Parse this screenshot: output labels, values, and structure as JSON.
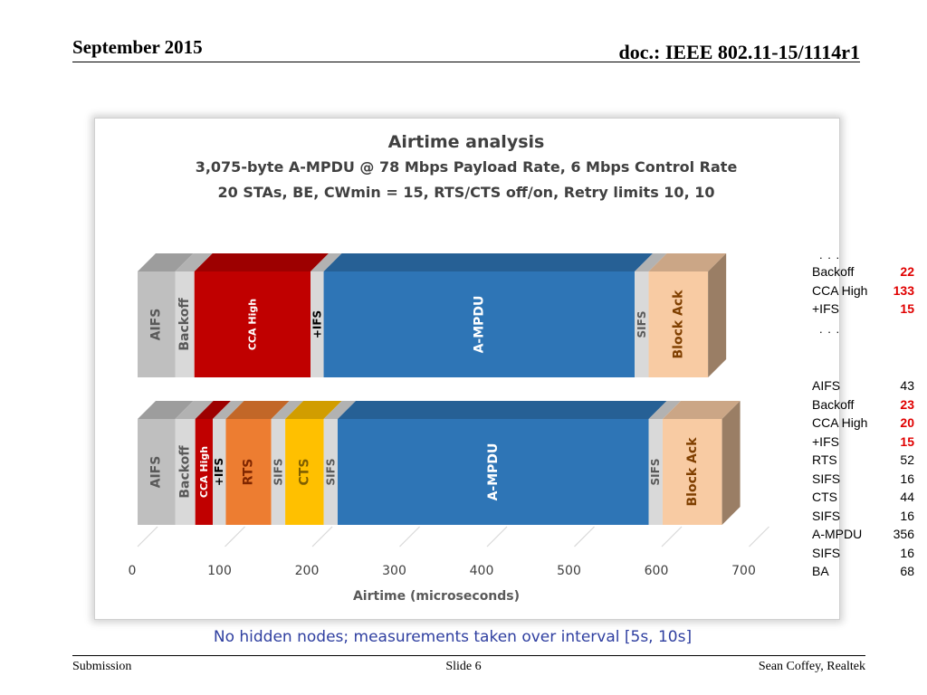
{
  "header": {
    "date": "September 2015",
    "doc": "doc.: IEEE 802.11-15/1114r1"
  },
  "footer": {
    "left": "Submission",
    "center": "Slide 6",
    "right": "Sean Coffey, Realtek"
  },
  "caption": "No hidden nodes; measurements taken over interval [5s, 10s]",
  "chart_data": {
    "type": "bar",
    "orientation": "horizontal",
    "stacked": true,
    "style": "3d",
    "title": "Airtime analysis",
    "subtitle_lines": [
      "3,075-byte A-MPDU @ 78 Mbps Payload Rate, 6 Mbps Control Rate",
      "20 STAs, BE, CWmin = 15, RTS/CTS off/on, Retry limits 10, 10"
    ],
    "xlabel": "Airtime (microseconds)",
    "xlim": [
      0,
      700
    ],
    "xticks": [
      "0",
      "100",
      "200",
      "300",
      "400",
      "500",
      "600",
      "700"
    ],
    "grid": true,
    "colors": {
      "AIFS": "#bfbfbf",
      "Backoff": "#d9d9d9",
      "CCA High": "#c00000",
      "+IFS": "#d9d9d9",
      "RTS": "#ed7d31",
      "SIFS": "#d9d9d9",
      "CTS": "#ffc000",
      "A-MPDU": "#2e75b6",
      "Block Ack": "#f8cba3"
    },
    "series": [
      {
        "segments": [
          {
            "label": "AIFS",
            "value": 43,
            "text": "AIFS"
          },
          {
            "label": "Backoff",
            "value": 22,
            "text": "Backoff"
          },
          {
            "label": "CCA High",
            "value": 133,
            "text": "CCA High"
          },
          {
            "label": "+IFS",
            "value": 15,
            "text": "+IFS"
          },
          {
            "label": "A-MPDU",
            "value": 356,
            "text": "A-MPDU"
          },
          {
            "label": "SIFS",
            "value": 16,
            "text": "SIFS"
          },
          {
            "label": "Block Ack",
            "value": 68,
            "text": "Block Ack"
          }
        ]
      },
      {
        "segments": [
          {
            "label": "AIFS",
            "value": 43,
            "text": "AIFS"
          },
          {
            "label": "Backoff",
            "value": 23,
            "text": "Backoff"
          },
          {
            "label": "CCA High",
            "value": 20,
            "text": "CCA High"
          },
          {
            "label": "+IFS",
            "value": 15,
            "text": "+IFS"
          },
          {
            "label": "RTS",
            "value": 52,
            "text": "RTS"
          },
          {
            "label": "SIFS",
            "value": 16,
            "text": "SIFS"
          },
          {
            "label": "CTS",
            "value": 44,
            "text": "CTS"
          },
          {
            "label": "SIFS",
            "value": 16,
            "text": "SIFS"
          },
          {
            "label": "A-MPDU",
            "value": 356,
            "text": "A-MPDU"
          },
          {
            "label": "SIFS",
            "value": 16,
            "text": "SIFS"
          },
          {
            "label": "Block Ack",
            "value": 68,
            "text": "Block Ack"
          }
        ]
      }
    ]
  },
  "side_table": {
    "top": [
      {
        "label": "Backoff",
        "value": "22",
        "highlight": true
      },
      {
        "label": "CCA High",
        "value": "133",
        "highlight": true
      },
      {
        "label": "+IFS",
        "value": "15",
        "highlight": true
      }
    ],
    "bottom": [
      {
        "label": "AIFS",
        "value": "43",
        "highlight": false
      },
      {
        "label": "Backoff",
        "value": "23",
        "highlight": true
      },
      {
        "label": "CCA High",
        "value": "20",
        "highlight": true
      },
      {
        "label": "+IFS",
        "value": "15",
        "highlight": true
      },
      {
        "label": "RTS",
        "value": "52",
        "highlight": false
      },
      {
        "label": "SIFS",
        "value": "16",
        "highlight": false
      },
      {
        "label": "CTS",
        "value": "44",
        "highlight": false
      },
      {
        "label": "SIFS",
        "value": "16",
        "highlight": false
      },
      {
        "label": "A-MPDU",
        "value": "356",
        "highlight": false
      },
      {
        "label": "SIFS",
        "value": "16",
        "highlight": false
      },
      {
        "label": "BA",
        "value": "68",
        "highlight": false
      }
    ],
    "ellipsis": ". . ."
  }
}
